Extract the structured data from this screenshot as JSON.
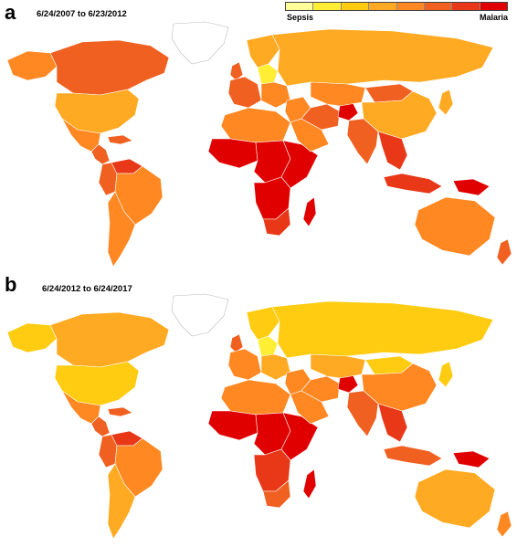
{
  "legend": {
    "low_label": "Sepsis",
    "high_label": "Malaria",
    "colors": [
      "#ffff99",
      "#ffee33",
      "#ffcc11",
      "#ffaa22",
      "#ff8822",
      "#f06020",
      "#e83818",
      "#e00000"
    ]
  },
  "panels": [
    {
      "letter": "a",
      "date_range": "6/24/2007 to 6/23/2012",
      "regions": {
        "greenland": 0,
        "canada": 5,
        "alaska": 4,
        "usa": 3,
        "mexico": 4,
        "central_america": 5,
        "caribbean": 5,
        "south_america_north": 5,
        "venezuela": 6,
        "brazil": 4,
        "southern_cone": 4,
        "uk_ireland": 5,
        "scandinavia": 3,
        "western_europe": 5,
        "central_europe": 1,
        "eastern_europe": 4,
        "russia": 3,
        "north_africa": 4,
        "west_africa": 7,
        "central_africa": 7,
        "east_africa": 7,
        "southern_africa": 7,
        "south_africa": 6,
        "madagascar": 7,
        "middle_east": 4,
        "arabia": 4,
        "iran": 5,
        "afghanistan": 7,
        "central_asia": 4,
        "mongolia": 5,
        "china": 3,
        "india": 5,
        "southeast_asia": 6,
        "japan": 3,
        "indonesia": 6,
        "new_guinea": 7,
        "australia": 4,
        "new_zealand": 5
      }
    },
    {
      "letter": "b",
      "date_range": "6/24/2012 to 6/24/2017",
      "regions": {
        "greenland": 0,
        "canada": 3,
        "alaska": 2,
        "usa": 2,
        "mexico": 4,
        "central_america": 5,
        "caribbean": 5,
        "south_america_north": 5,
        "venezuela": 6,
        "brazil": 4,
        "southern_cone": 3,
        "uk_ireland": 5,
        "scandinavia": 2,
        "western_europe": 4,
        "central_europe": 1,
        "eastern_europe": 3,
        "russia": 2,
        "north_africa": 4,
        "west_africa": 7,
        "central_africa": 7,
        "east_africa": 7,
        "southern_africa": 6,
        "south_africa": 5,
        "madagascar": 7,
        "middle_east": 4,
        "arabia": 4,
        "iran": 4,
        "afghanistan": 7,
        "central_asia": 3,
        "mongolia": 2,
        "china": 4,
        "india": 5,
        "southeast_asia": 6,
        "japan": 2,
        "indonesia": 5,
        "new_guinea": 7,
        "australia": 3,
        "new_zealand": 4
      }
    }
  ]
}
